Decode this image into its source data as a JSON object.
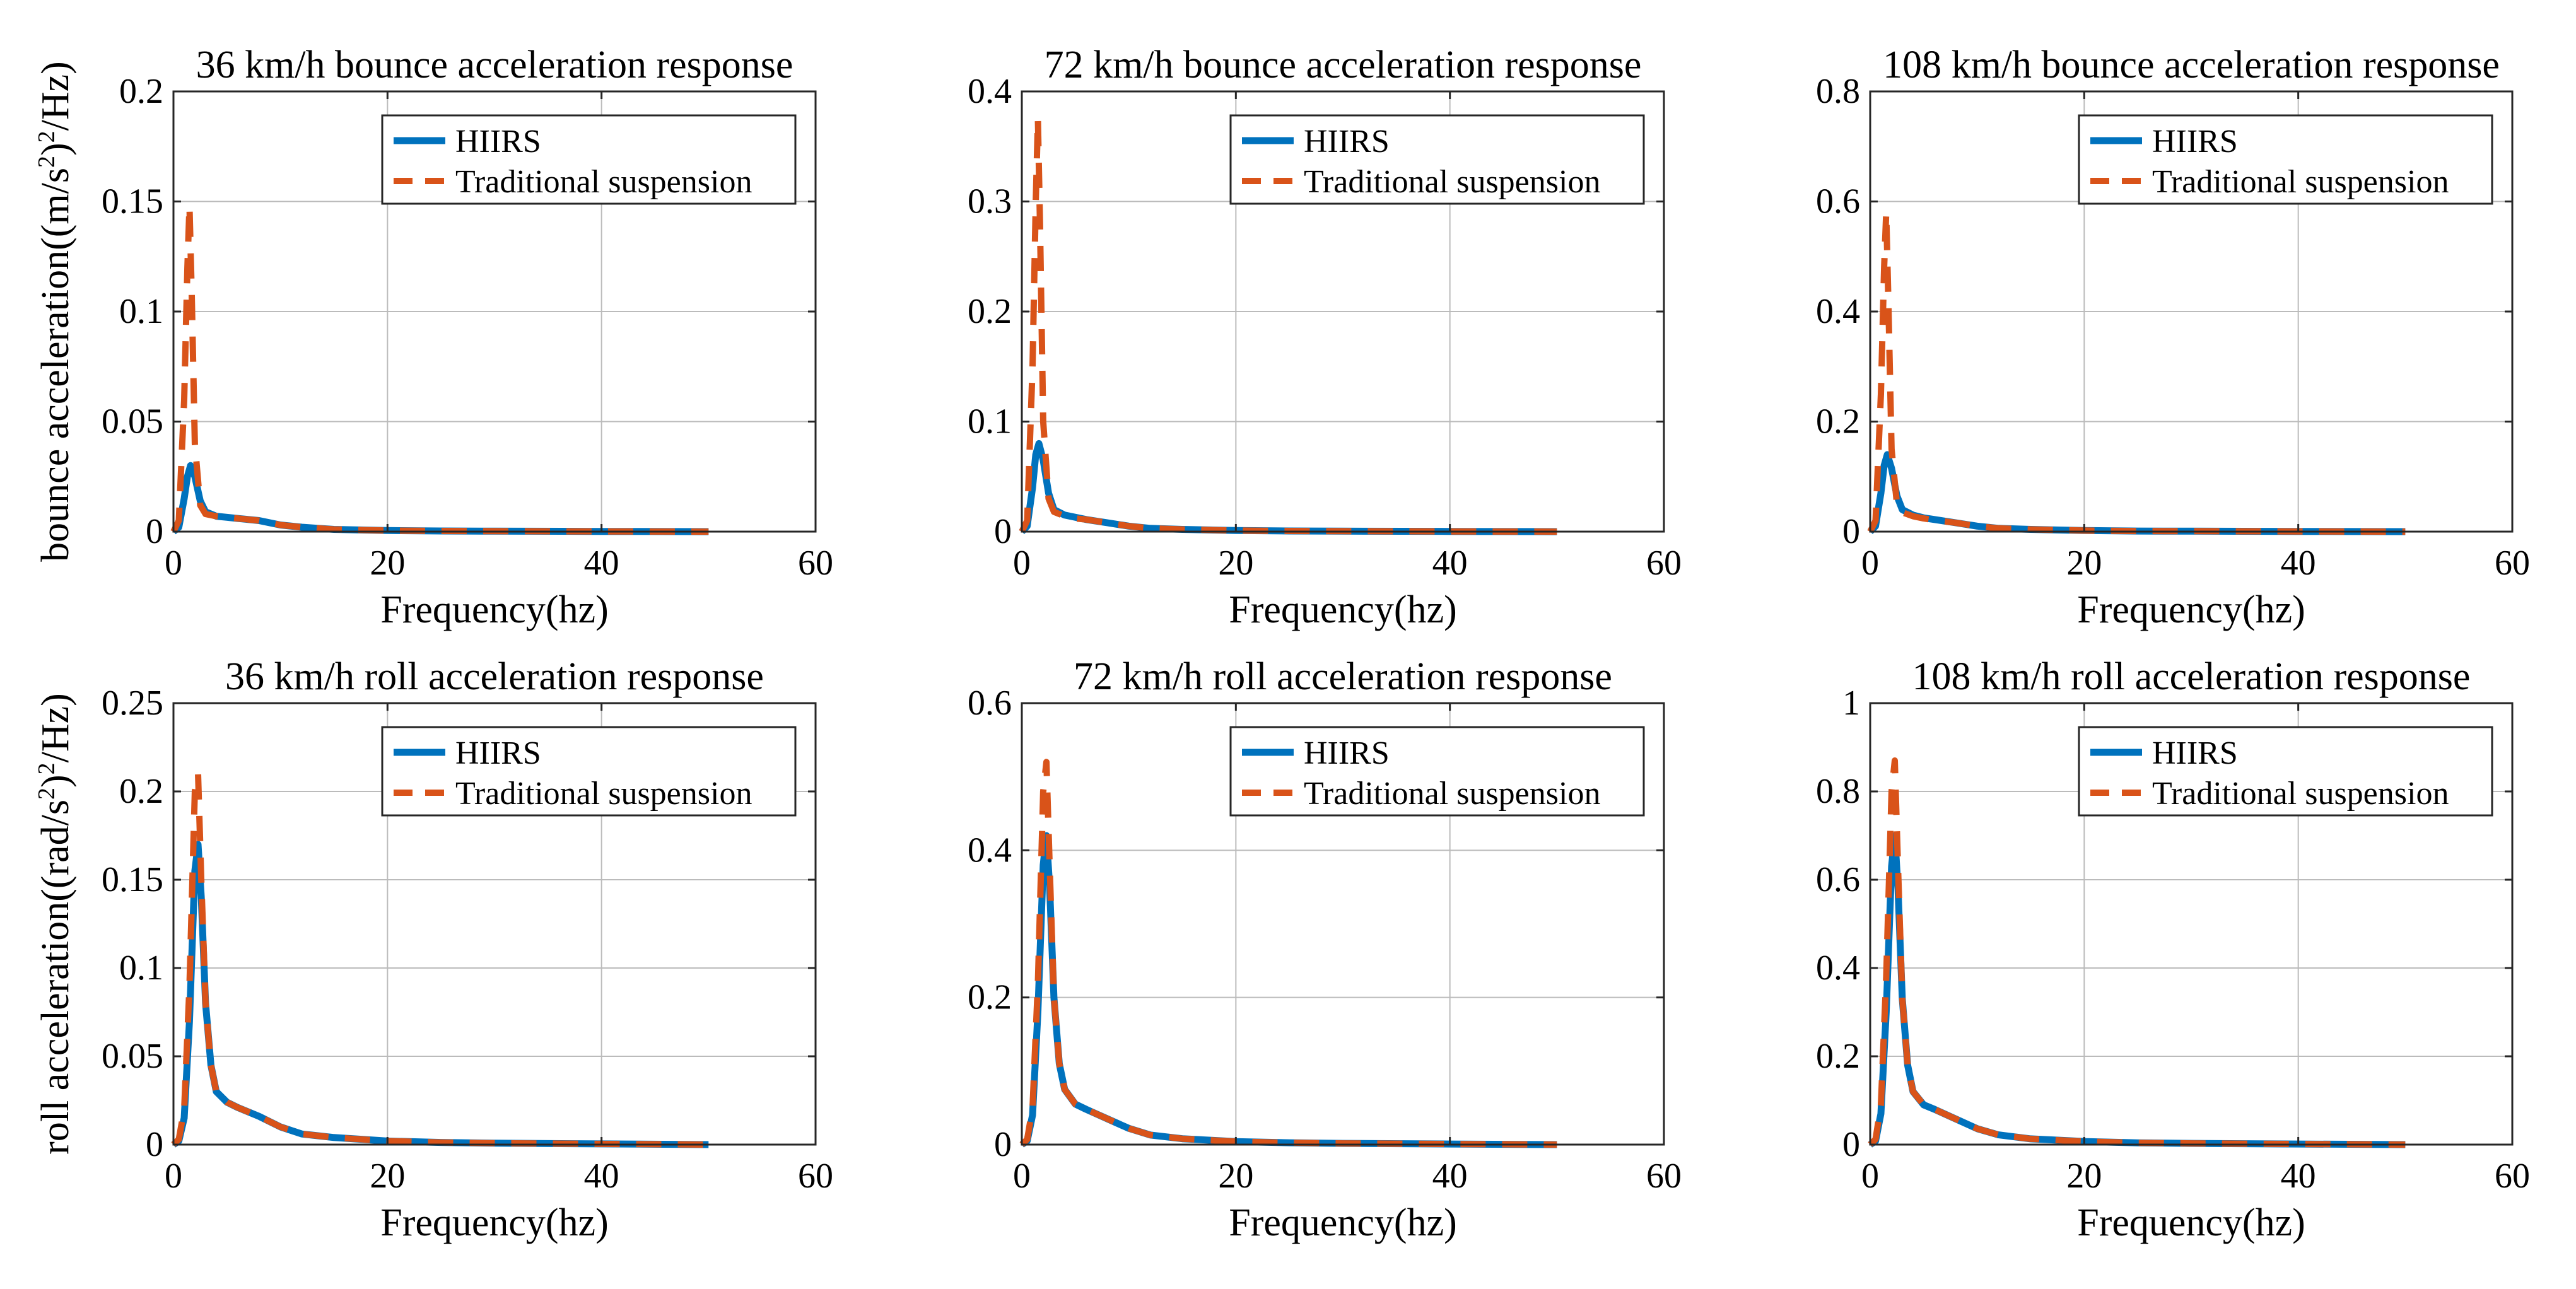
{
  "legend": {
    "hiirs": "HIIRS",
    "traditional": "Traditional suspension"
  },
  "colors": {
    "hiirs": "#0072BD",
    "traditional": "#D95319",
    "grid": "#BBBBBB",
    "axis": "#262626"
  },
  "y_labels": {
    "bounce": {
      "main": "bounce acceleration((m/s",
      "sup1": "2",
      "mid": ")",
      "sup2": "2",
      "tail": "/Hz)"
    },
    "roll": {
      "main": "roll acceleration((rad/s",
      "sup1": "2",
      "mid": ")",
      "sup2": "2",
      "tail": "/Hz)"
    }
  },
  "chart_data": [
    {
      "type": "line",
      "title": "36 km/h bounce acceleration response",
      "xlabel": "Frequency(hz)",
      "xlim": [
        0,
        60
      ],
      "ylim": [
        0,
        0.2
      ],
      "xticks": [
        "0",
        "20",
        "40",
        "60"
      ],
      "yticks": [
        "0",
        "0.05",
        "0.1",
        "0.15",
        "0.2"
      ],
      "legend_position": "top-right",
      "series": [
        {
          "name": "HIIRS",
          "x": [
            0,
            0.5,
            1,
            1.3,
            1.6,
            2,
            2.5,
            3,
            4,
            5,
            6,
            8,
            10,
            12,
            15,
            20,
            25,
            30,
            40,
            50
          ],
          "y": [
            0,
            0.002,
            0.015,
            0.025,
            0.03,
            0.025,
            0.014,
            0.009,
            0.007,
            0.0065,
            0.006,
            0.005,
            0.003,
            0.002,
            0.001,
            0.0005,
            0.0003,
            0.0002,
            0.0001,
            0
          ]
        },
        {
          "name": "Traditional suspension",
          "x": [
            0,
            0.5,
            1,
            1.3,
            1.5,
            1.7,
            2,
            2.5,
            3,
            4,
            5,
            6,
            8,
            10,
            12,
            15,
            20,
            25,
            30,
            40,
            50
          ],
          "y": [
            0,
            0.005,
            0.06,
            0.12,
            0.148,
            0.11,
            0.04,
            0.012,
            0.008,
            0.007,
            0.0065,
            0.006,
            0.005,
            0.003,
            0.002,
            0.001,
            0.0005,
            0.0003,
            0.0002,
            0.0001,
            0
          ]
        }
      ]
    },
    {
      "type": "line",
      "title": "72 km/h bounce acceleration response",
      "xlabel": "Frequency(hz)",
      "xlim": [
        0,
        60
      ],
      "ylim": [
        0,
        0.4
      ],
      "xticks": [
        "0",
        "20",
        "40",
        "60"
      ],
      "yticks": [
        "0",
        "0.1",
        "0.2",
        "0.3",
        "0.4"
      ],
      "legend_position": "top-right",
      "series": [
        {
          "name": "HIIRS",
          "x": [
            0,
            0.5,
            1,
            1.3,
            1.6,
            2,
            2.5,
            3,
            4,
            5,
            6,
            8,
            10,
            12,
            15,
            20,
            25,
            30,
            40,
            50
          ],
          "y": [
            0,
            0.005,
            0.04,
            0.07,
            0.08,
            0.065,
            0.035,
            0.02,
            0.015,
            0.013,
            0.011,
            0.008,
            0.005,
            0.003,
            0.002,
            0.001,
            0.0006,
            0.0004,
            0.0002,
            0
          ]
        },
        {
          "name": "Traditional suspension",
          "x": [
            0,
            0.5,
            1,
            1.3,
            1.5,
            1.7,
            2,
            2.5,
            3,
            4,
            5,
            6,
            8,
            10,
            12,
            15,
            20,
            25,
            30,
            40,
            50
          ],
          "y": [
            0,
            0.01,
            0.15,
            0.3,
            0.375,
            0.28,
            0.1,
            0.03,
            0.018,
            0.014,
            0.012,
            0.011,
            0.008,
            0.005,
            0.003,
            0.002,
            0.001,
            0.0006,
            0.0004,
            0.0002,
            0
          ]
        }
      ]
    },
    {
      "type": "line",
      "title": "108 km/h bounce acceleration response",
      "xlabel": "Frequency(hz)",
      "xlim": [
        0,
        60
      ],
      "ylim": [
        0,
        0.8
      ],
      "xticks": [
        "0",
        "20",
        "40",
        "60"
      ],
      "yticks": [
        "0",
        "0.2",
        "0.4",
        "0.6",
        "0.8"
      ],
      "legend_position": "top-right",
      "series": [
        {
          "name": "HIIRS",
          "x": [
            0,
            0.5,
            1,
            1.3,
            1.6,
            2,
            2.5,
            3,
            4,
            5,
            6,
            8,
            10,
            12,
            15,
            20,
            25,
            30,
            40,
            50
          ],
          "y": [
            0,
            0.01,
            0.07,
            0.12,
            0.14,
            0.115,
            0.065,
            0.04,
            0.03,
            0.025,
            0.022,
            0.016,
            0.01,
            0.006,
            0.004,
            0.002,
            0.001,
            0.0008,
            0.0004,
            0
          ]
        },
        {
          "name": "Traditional suspension",
          "x": [
            0,
            0.5,
            1,
            1.3,
            1.5,
            1.7,
            2,
            2.5,
            3,
            4,
            5,
            6,
            8,
            10,
            12,
            15,
            20,
            25,
            30,
            40,
            50
          ],
          "y": [
            0,
            0.02,
            0.25,
            0.48,
            0.58,
            0.42,
            0.15,
            0.05,
            0.035,
            0.028,
            0.024,
            0.021,
            0.016,
            0.01,
            0.006,
            0.004,
            0.002,
            0.001,
            0.0008,
            0.0004,
            0
          ]
        }
      ]
    },
    {
      "type": "line",
      "title": "36 km/h roll acceleration response",
      "xlabel": "Frequency(hz)",
      "xlim": [
        0,
        60
      ],
      "ylim": [
        0,
        0.25
      ],
      "xticks": [
        "0",
        "20",
        "40",
        "60"
      ],
      "yticks": [
        "0",
        "0.05",
        "0.1",
        "0.15",
        "0.2",
        "0.25"
      ],
      "legend_position": "top-right",
      "series": [
        {
          "name": "HIIRS",
          "x": [
            0,
            0.5,
            1,
            1.5,
            2,
            2.3,
            2.6,
            3,
            3.5,
            4,
            5,
            6,
            8,
            10,
            12,
            15,
            20,
            25,
            30,
            40,
            50
          ],
          "y": [
            0,
            0.002,
            0.015,
            0.07,
            0.155,
            0.17,
            0.14,
            0.08,
            0.045,
            0.03,
            0.024,
            0.021,
            0.016,
            0.01,
            0.006,
            0.004,
            0.002,
            0.0012,
            0.0008,
            0.0004,
            0
          ]
        },
        {
          "name": "Traditional suspension",
          "x": [
            0,
            0.5,
            1,
            1.5,
            2,
            2.3,
            2.6,
            3,
            3.5,
            4,
            5,
            6,
            8,
            10,
            12,
            15,
            20,
            25,
            30,
            40,
            50
          ],
          "y": [
            0,
            0.003,
            0.02,
            0.09,
            0.2,
            0.21,
            0.15,
            0.08,
            0.045,
            0.03,
            0.024,
            0.021,
            0.016,
            0.01,
            0.006,
            0.004,
            0.002,
            0.0012,
            0.0008,
            0.0004,
            0
          ]
        }
      ]
    },
    {
      "type": "line",
      "title": "72 km/h roll acceleration response",
      "xlabel": "Frequency(hz)",
      "xlim": [
        0,
        60
      ],
      "ylim": [
        0,
        0.6
      ],
      "xticks": [
        "0",
        "20",
        "40",
        "60"
      ],
      "yticks": [
        "0",
        "0.2",
        "0.4",
        "0.6"
      ],
      "legend_position": "top-right",
      "series": [
        {
          "name": "HIIRS",
          "x": [
            0,
            0.5,
            1,
            1.5,
            2,
            2.3,
            2.6,
            3,
            3.5,
            4,
            5,
            6,
            8,
            10,
            12,
            15,
            20,
            25,
            30,
            40,
            50
          ],
          "y": [
            0,
            0.005,
            0.04,
            0.18,
            0.38,
            0.42,
            0.35,
            0.2,
            0.11,
            0.075,
            0.055,
            0.048,
            0.035,
            0.022,
            0.013,
            0.008,
            0.004,
            0.0025,
            0.0016,
            0.0008,
            0
          ]
        },
        {
          "name": "Traditional suspension",
          "x": [
            0,
            0.5,
            1,
            1.5,
            2,
            2.3,
            2.6,
            3,
            3.5,
            4,
            5,
            6,
            8,
            10,
            12,
            15,
            20,
            25,
            30,
            40,
            50
          ],
          "y": [
            0,
            0.007,
            0.05,
            0.22,
            0.48,
            0.52,
            0.38,
            0.2,
            0.11,
            0.075,
            0.055,
            0.048,
            0.035,
            0.022,
            0.013,
            0.008,
            0.004,
            0.0025,
            0.0016,
            0.0008,
            0
          ]
        }
      ]
    },
    {
      "type": "line",
      "title": "108 km/h roll acceleration response",
      "xlabel": "Frequency(hz)",
      "xlim": [
        0,
        60
      ],
      "ylim": [
        0,
        1
      ],
      "xticks": [
        "0",
        "20",
        "40",
        "60"
      ],
      "yticks": [
        "0",
        "0.2",
        "0.4",
        "0.6",
        "0.8",
        "1"
      ],
      "legend_position": "top-right",
      "series": [
        {
          "name": "HIIRS",
          "x": [
            0,
            0.5,
            1,
            1.5,
            2,
            2.3,
            2.6,
            3,
            3.5,
            4,
            5,
            6,
            8,
            10,
            12,
            15,
            20,
            25,
            30,
            40,
            50
          ],
          "y": [
            0,
            0.008,
            0.07,
            0.3,
            0.63,
            0.7,
            0.58,
            0.33,
            0.18,
            0.12,
            0.09,
            0.08,
            0.058,
            0.036,
            0.022,
            0.013,
            0.007,
            0.004,
            0.0027,
            0.0013,
            0
          ]
        },
        {
          "name": "Traditional suspension",
          "x": [
            0,
            0.5,
            1,
            1.5,
            2,
            2.3,
            2.6,
            3,
            3.5,
            4,
            5,
            6,
            8,
            10,
            12,
            15,
            20,
            25,
            30,
            40,
            50
          ],
          "y": [
            0,
            0.012,
            0.09,
            0.38,
            0.8,
            0.87,
            0.63,
            0.33,
            0.18,
            0.12,
            0.09,
            0.08,
            0.058,
            0.036,
            0.022,
            0.013,
            0.007,
            0.004,
            0.0027,
            0.0013,
            0
          ]
        }
      ]
    }
  ]
}
